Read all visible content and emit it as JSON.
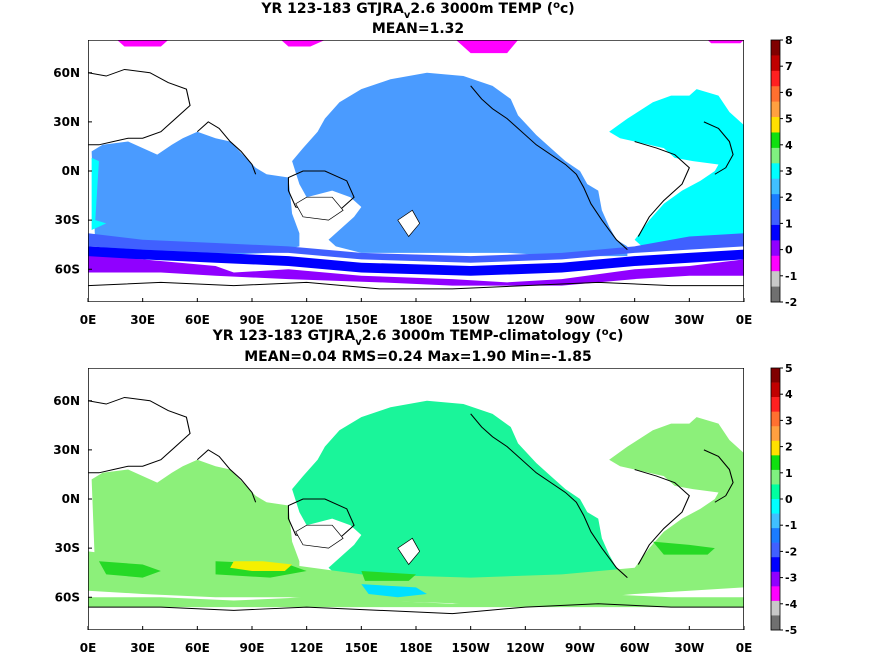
{
  "chart_data": [
    {
      "type": "heatmap",
      "title_main": "YR 123-183 GTJRA",
      "title_sub": "v",
      "title_rest": "2.6 3000m TEMP (",
      "title_deg": "o",
      "title_unit": "c)",
      "subtitle": "MEAN=1.32",
      "x_ticks": [
        "0E",
        "30E",
        "60E",
        "90E",
        "120E",
        "150E",
        "180E",
        "150W",
        "120W",
        "90W",
        "60W",
        "30W",
        "0E"
      ],
      "y_ticks": [
        "60N",
        "30N",
        "0N",
        "30S",
        "60S"
      ],
      "y_tick_values": [
        60,
        30,
        0,
        -30,
        -60
      ],
      "xlim": [
        0,
        360
      ],
      "ylim": [
        -80,
        80
      ],
      "colorbar": {
        "labels": [
          "8",
          "7",
          "6",
          "5",
          "4",
          "3",
          "2",
          "1",
          "0",
          "-1",
          "-2"
        ],
        "colors": [
          "#800000",
          "#c00000",
          "#ff2020",
          "#ff7030",
          "#ffa040",
          "#ffe000",
          "#10e010",
          "#80f080",
          "#00ffff",
          "#40c0ff",
          "#1a7cff",
          "#4060ff",
          "#0000ff",
          "#9000ff",
          "#ff00ff",
          "#c8c8c8",
          "#707070"
        ]
      },
      "regions": [
        {
          "name": "pacific-basin",
          "value": 1.5,
          "color": "#4a9bff"
        },
        {
          "name": "indian-basin",
          "value": 1.5,
          "color": "#4a9bff"
        },
        {
          "name": "atlantic-basin",
          "value": 2.5,
          "color": "#00ffff"
        },
        {
          "name": "southern-ocean-upper",
          "value": 0.5,
          "color": "#4060ff"
        },
        {
          "name": "southern-ocean-lower",
          "value": 0,
          "color": "#0000ff"
        },
        {
          "name": "antarctic-margin",
          "value": -0.5,
          "color": "#9000ff"
        },
        {
          "name": "arctic",
          "value": -1,
          "color": "#ff00ff"
        }
      ]
    },
    {
      "type": "heatmap",
      "title_main": "YR 123-183 GTJRA",
      "title_sub": "v",
      "title_rest": "2.6 3000m TEMP-climatology (",
      "title_deg": "o",
      "title_unit": "c)",
      "subtitle": "MEAN=0.04   RMS=0.24   Max=1.90   Min=-1.85",
      "x_ticks": [
        "0E",
        "30E",
        "60E",
        "90E",
        "120E",
        "150E",
        "180E",
        "150W",
        "120W",
        "90W",
        "60W",
        "30W",
        "0E"
      ],
      "y_ticks": [
        "60N",
        "30N",
        "0N",
        "30S",
        "60S"
      ],
      "y_tick_values": [
        60,
        30,
        0,
        -30,
        -60
      ],
      "xlim": [
        0,
        360
      ],
      "ylim": [
        -80,
        80
      ],
      "colorbar": {
        "labels": [
          "5",
          "4",
          "3",
          "2",
          "1",
          "0",
          "-1",
          "-2",
          "-3",
          "-4",
          "-5"
        ],
        "colors": [
          "#800000",
          "#c00000",
          "#ff2020",
          "#ff7030",
          "#ffa040",
          "#ffe000",
          "#10e010",
          "#80f080",
          "#00ffa0",
          "#00ffff",
          "#40c0ff",
          "#1a7cff",
          "#4060ff",
          "#0000ff",
          "#9000ff",
          "#ff00ff",
          "#c8c8c8",
          "#707070"
        ]
      },
      "regions": [
        {
          "name": "pacific-basin",
          "value": -0.3,
          "color": "#1af59a"
        },
        {
          "name": "indian-basin",
          "value": 0.3,
          "color": "#8cf07a"
        },
        {
          "name": "atlantic-basin",
          "value": 0.3,
          "color": "#8cf07a"
        },
        {
          "name": "southern-ocean-upper",
          "value": 0.3,
          "color": "#8cf07a"
        },
        {
          "name": "southern-ocean-lower",
          "value": 0.8,
          "color": "#26d926"
        },
        {
          "name": "southern-indian-max",
          "value": 1.9,
          "color": "#f5f000"
        },
        {
          "name": "antarctic-margin",
          "value": -0.8,
          "color": "#00e0ff"
        }
      ]
    }
  ]
}
